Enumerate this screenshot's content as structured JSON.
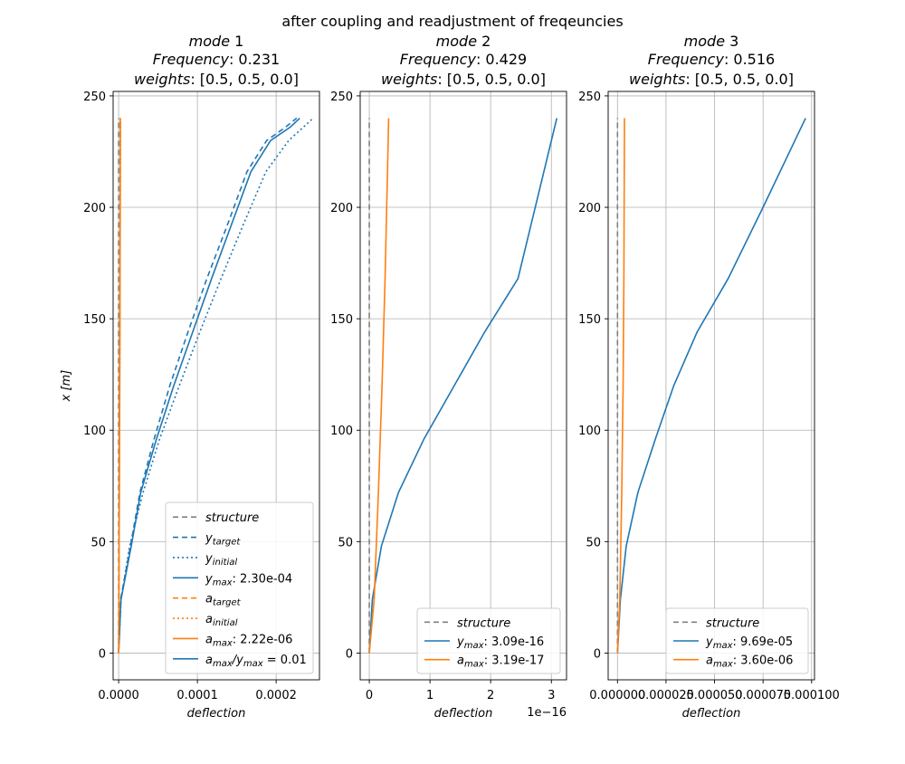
{
  "figure": {
    "suptitle": "after coupling and readjustment of freqeuncies"
  },
  "chart_data": [
    {
      "type": "line",
      "title_mode": "mode",
      "title_mode_num": "1",
      "title_freq_label": "Frequency",
      "title_freq_value": ": 0.231",
      "title_weights_label": "weights",
      "title_weights_value": ": [0.5, 0.5, 0.0]",
      "xlabel": "deflection",
      "ylabel": "x [m]",
      "xlim": [
        -7e-06,
        0.000255
      ],
      "ylim": [
        -12,
        252
      ],
      "x_ticks": [
        0,
        0.0001,
        0.0002
      ],
      "x_tick_labels": [
        "0.0000",
        "0.0001",
        "0.0002"
      ],
      "y_ticks": [
        0,
        50,
        100,
        150,
        200,
        250
      ],
      "y_tick_labels": [
        "0",
        "50",
        "100",
        "150",
        "200",
        "250"
      ],
      "offset_text": "",
      "grid": true,
      "legend_position": "bottom-right",
      "series": [
        {
          "name": "structure",
          "color": "#808080",
          "dash": "6,4",
          "x": [
            0,
            0
          ],
          "y": [
            0,
            240
          ]
        },
        {
          "name": "y_target",
          "color": "#1f77b4",
          "dash": "6,4",
          "x": [
            0,
            2.5e-06,
            1.5e-05,
            2.7e-05,
            4.5e-05,
            6.5e-05,
            8.8e-05,
            0.000112,
            0.000138,
            0.000163,
            0.000188,
            0.000212,
            0.000226
          ],
          "y": [
            0,
            24,
            48,
            72,
            96,
            120,
            144,
            168,
            192,
            216,
            230,
            236,
            240
          ]
        },
        {
          "name": "y_initial",
          "color": "#1f77b4",
          "dash": "2,3",
          "x": [
            0,
            3e-06,
            1.4e-05,
            3.1e-05,
            5.2e-05,
            7.7e-05,
            0.000103,
            0.00013,
            0.000158,
            0.000187,
            0.000216,
            0.000247
          ],
          "y": [
            0,
            24,
            48,
            72,
            96,
            120,
            144,
            168,
            192,
            216,
            230,
            240
          ]
        },
        {
          "name": "y_max",
          "color": "#1f77b4",
          "dash": "",
          "x": [
            0,
            3e-06,
            1.6e-05,
            2.8e-05,
            4.8e-05,
            7e-05,
            9.4e-05,
            0.000118,
            0.000143,
            0.000168,
            0.000193,
            0.000218,
            0.00023
          ],
          "y": [
            0,
            24,
            48,
            72,
            96,
            120,
            144,
            168,
            192,
            216,
            230,
            236,
            240
          ]
        },
        {
          "name": "a_target",
          "color": "#ff7f0e",
          "dash": "6,4",
          "x": [
            0,
            3e-07,
            8e-07,
            1.3e-06,
            1.7e-06,
            2e-06,
            2.2e-06
          ],
          "y": [
            0,
            24,
            72,
            120,
            168,
            216,
            240
          ]
        },
        {
          "name": "a_initial",
          "color": "#ff7f0e",
          "dash": "2,3",
          "x": [
            0,
            3e-07,
            9e-07,
            1.4e-06,
            1.8e-06,
            2.1e-06,
            2.4e-06
          ],
          "y": [
            0,
            24,
            72,
            120,
            168,
            216,
            240
          ]
        },
        {
          "name": "a_max",
          "color": "#ff7f0e",
          "dash": "",
          "x": [
            0,
            4e-07,
            9e-07,
            1.4e-06,
            1.8e-06,
            2.1e-06,
            2.2e-06
          ],
          "y": [
            0,
            24,
            72,
            120,
            168,
            216,
            240
          ]
        }
      ],
      "legend": [
        {
          "kind": "structure",
          "color": "#808080",
          "dash": "6,4",
          "label": "structure",
          "value": ""
        },
        {
          "kind": "y_target",
          "color": "#1f77b4",
          "dash": "6,4",
          "label": "",
          "base": "y",
          "sub": "target",
          "value": ""
        },
        {
          "kind": "y_initial",
          "color": "#1f77b4",
          "dash": "2,3",
          "label": "",
          "base": "y",
          "sub": "initial",
          "value": ""
        },
        {
          "kind": "y_max",
          "color": "#1f77b4",
          "dash": "",
          "label": "",
          "base": "y",
          "sub": "max",
          "value": ":  2.30e-04"
        },
        {
          "kind": "a_target",
          "color": "#ff7f0e",
          "dash": "6,4",
          "label": "",
          "base": "a",
          "sub": "target",
          "value": ""
        },
        {
          "kind": "a_initial",
          "color": "#ff7f0e",
          "dash": "2,3",
          "label": "",
          "base": "a",
          "sub": "initial",
          "value": ""
        },
        {
          "kind": "a_max",
          "color": "#ff7f0e",
          "dash": "",
          "label": "",
          "base": "a",
          "sub": "max",
          "value": ":  2.22e-06"
        },
        {
          "kind": "ratio",
          "color": "#1f77b4",
          "dash": "",
          "label": "",
          "base": "a",
          "sub": "max",
          "base2": "/y",
          "sub2": "max",
          "value": " = 0.01"
        }
      ]
    },
    {
      "type": "line",
      "title_mode": "mode",
      "title_mode_num": "2",
      "title_freq_label": "Frequency",
      "title_freq_value": ": 0.429",
      "title_weights_label": "weights",
      "title_weights_value": ": [0.5, 0.5, 0.0]",
      "xlabel": "deflection",
      "ylabel": "",
      "xlim": [
        -1.5e-17,
        3.25e-16
      ],
      "ylim": [
        -12,
        252
      ],
      "x_ticks": [
        0,
        1e-16,
        2e-16,
        3e-16
      ],
      "x_tick_labels": [
        "0",
        "1",
        "2",
        "3"
      ],
      "y_ticks": [
        0,
        50,
        100,
        150,
        200,
        250
      ],
      "y_tick_labels": [
        "0",
        "50",
        "100",
        "150",
        "200",
        "250"
      ],
      "offset_text": "1e−16",
      "grid": true,
      "legend_position": "bottom-right",
      "series": [
        {
          "name": "structure",
          "color": "#808080",
          "dash": "6,4",
          "x": [
            0,
            0
          ],
          "y": [
            0,
            240
          ]
        },
        {
          "name": "y_max",
          "color": "#1f77b4",
          "dash": "",
          "x": [
            0,
            5e-18,
            2e-17,
            4.8e-17,
            9e-17,
            1.4e-16,
            1.9e-16,
            2.45e-16,
            3.09e-16
          ],
          "y": [
            0,
            24,
            48,
            72,
            96,
            120,
            144,
            168,
            240
          ]
        },
        {
          "name": "a_max",
          "color": "#ff7f0e",
          "dash": "",
          "x": [
            0,
            8e-18,
            1.5e-17,
            2.1e-17,
            2.6e-17,
            3e-17,
            3.19e-17
          ],
          "y": [
            0,
            24,
            72,
            120,
            168,
            216,
            240
          ]
        }
      ],
      "legend": [
        {
          "kind": "structure",
          "color": "#808080",
          "dash": "6,4",
          "label": "structure",
          "value": ""
        },
        {
          "kind": "y_max",
          "color": "#1f77b4",
          "dash": "",
          "label": "",
          "base": "y",
          "sub": "max",
          "value": ":  3.09e-16"
        },
        {
          "kind": "a_max",
          "color": "#ff7f0e",
          "dash": "",
          "label": "",
          "base": "a",
          "sub": "max",
          "value": ":  3.19e-17"
        }
      ]
    },
    {
      "type": "line",
      "title_mode": "mode",
      "title_mode_num": "3",
      "title_freq_label": "Frequency",
      "title_freq_value": ": 0.516",
      "title_weights_label": "weights",
      "title_weights_value": ": [0.5, 0.5, 0.0]",
      "xlabel": "deflection",
      "ylabel": "",
      "xlim": [
        -4.8e-06,
        0.0001015
      ],
      "ylim": [
        -12,
        252
      ],
      "x_ticks": [
        0,
        2.5e-05,
        5e-05,
        7.5e-05,
        0.0001
      ],
      "x_tick_labels": [
        "0.000000",
        "0.000025",
        "0.000050",
        "0.000075",
        "0.000100"
      ],
      "y_ticks": [
        0,
        50,
        100,
        150,
        200,
        250
      ],
      "y_tick_labels": [
        "0",
        "50",
        "100",
        "150",
        "200",
        "250"
      ],
      "offset_text": "",
      "grid": true,
      "legend_position": "bottom-right",
      "series": [
        {
          "name": "structure",
          "color": "#808080",
          "dash": "6,4",
          "x": [
            0,
            0
          ],
          "y": [
            0,
            240
          ]
        },
        {
          "name": "y_max",
          "color": "#1f77b4",
          "dash": "",
          "x": [
            0,
            1.5e-06,
            4.5e-06,
            1.05e-05,
            1.95e-05,
            2.9e-05,
            4.1e-05,
            5.7e-05,
            7.5e-05,
            9.69e-05
          ],
          "y": [
            0,
            24,
            48,
            72,
            96,
            120,
            144,
            168,
            200,
            240
          ]
        },
        {
          "name": "a_max",
          "color": "#ff7f0e",
          "dash": "",
          "x": [
            0,
            1.2e-06,
            2.2e-06,
            2.9e-06,
            3.3e-06,
            3.5e-06,
            3.6e-06
          ],
          "y": [
            0,
            24,
            72,
            120,
            168,
            216,
            240
          ]
        }
      ],
      "legend": [
        {
          "kind": "structure",
          "color": "#808080",
          "dash": "6,4",
          "label": "structure",
          "value": ""
        },
        {
          "kind": "y_max",
          "color": "#1f77b4",
          "dash": "",
          "label": "",
          "base": "y",
          "sub": "max",
          "value": ":  9.69e-05"
        },
        {
          "kind": "a_max",
          "color": "#ff7f0e",
          "dash": "",
          "label": "",
          "base": "a",
          "sub": "max",
          "value": ":  3.60e-06"
        }
      ]
    }
  ]
}
